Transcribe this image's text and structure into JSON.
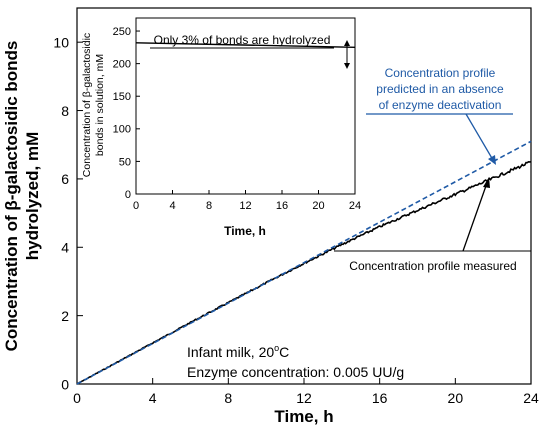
{
  "chart_data": [
    {
      "type": "line",
      "xlabel": "Time, h",
      "ylabel_lines": [
        "Concentration of β-galactosidic bonds",
        "hydrolyzed, mM"
      ],
      "xlim": [
        0,
        24
      ],
      "ylim": [
        0,
        11
      ],
      "xticks": [
        "0",
        "4",
        "8",
        "12",
        "16",
        "20",
        "24"
      ],
      "yticks": [
        "0",
        "2",
        "4",
        "6",
        "8",
        "10"
      ],
      "grid": false,
      "series": [
        {
          "name": "Concentration profile measured",
          "style": "solid",
          "color": "#000000",
          "x": [
            0,
            2,
            4,
            6,
            8,
            10,
            12,
            14,
            16,
            18,
            20,
            22,
            24
          ],
          "y": [
            0,
            0.6,
            1.2,
            1.8,
            2.38,
            2.96,
            3.53,
            4.08,
            4.6,
            5.08,
            5.55,
            6.02,
            6.5
          ]
        },
        {
          "name": "Concentration profile predicted in an absence of enzyme deactivation",
          "style": "dashed",
          "color": "#1f5aa6",
          "x": [
            0,
            24
          ],
          "y": [
            0,
            7.1
          ]
        }
      ],
      "annotations": {
        "conditions_line1": "Infant milk, 20",
        "conditions_line1_sup": "o",
        "conditions_line1_suffix": "C",
        "conditions_line2": "Enzyme concentration: 0.005 UU/g",
        "predicted_label": [
          "Concentration profile",
          "predicted in an absence",
          "of enzyme deactivation"
        ],
        "measured_label": "Concentration profile measured"
      }
    },
    {
      "type": "line",
      "xlabel": "Time, h",
      "ylabel_lines": [
        "Concentration of β-galactosidic",
        "bonds in solution, mM"
      ],
      "xlim": [
        0,
        24
      ],
      "ylim": [
        0,
        270
      ],
      "xticks": [
        "0",
        "4",
        "8",
        "12",
        "16",
        "20",
        "24"
      ],
      "yticks": [
        "0",
        "50",
        "100",
        "150",
        "200",
        "250"
      ],
      "grid": false,
      "series": [
        {
          "style": "solid",
          "color": "#000000",
          "x": [
            0,
            24
          ],
          "y": [
            232,
            225
          ]
        }
      ],
      "annotation": "Only 3% of bonds are hydrolyzed"
    }
  ]
}
